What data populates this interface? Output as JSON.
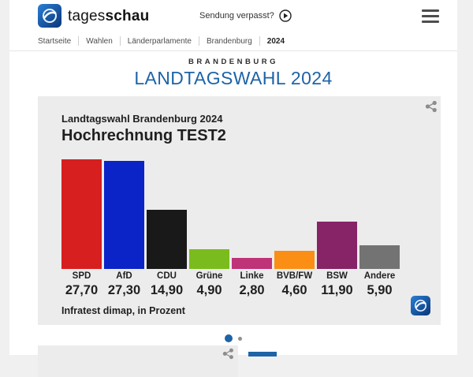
{
  "header": {
    "brand_light": "tages",
    "brand_bold": "schau",
    "watch_label": "Sendung verpasst?"
  },
  "breadcrumb": {
    "items": [
      "Startseite",
      "Wahlen",
      "Länderparlamente",
      "Brandenburg",
      "2024"
    ]
  },
  "page_title": {
    "kicker": "BRANDENBURG",
    "heading": "LANDTAGSWAHL 2024"
  },
  "chart_card": {
    "supertitle": "Landtagswahl Brandenburg 2024",
    "title": "Hochrechnung TEST2",
    "source": "Infratest dimap, in Prozent"
  },
  "chart_data": {
    "type": "bar",
    "title": "Hochrechnung TEST2",
    "subtitle": "Landtagswahl Brandenburg 2024",
    "source_note": "Infratest dimap, in Prozent",
    "unit": "percent",
    "categories": [
      "SPD",
      "AfD",
      "CDU",
      "Grüne",
      "Linke",
      "BVB/FW",
      "BSW",
      "Andere"
    ],
    "values": [
      27.7,
      27.3,
      14.9,
      4.9,
      2.8,
      4.6,
      11.9,
      5.9
    ],
    "value_labels": [
      "27,70",
      "27,30",
      "14,90",
      "4,90",
      "2,80",
      "4,60",
      "11,90",
      "5,90"
    ],
    "bar_colors": [
      "#d71f1f",
      "#0b24c8",
      "#191919",
      "#7abc1d",
      "#bf3378",
      "#fb8e14",
      "#872367",
      "#737373"
    ],
    "ylim": [
      0,
      30
    ],
    "grid": false,
    "legend": "none"
  },
  "carousel": {
    "active_page": 1,
    "pages": 2
  },
  "colors": {
    "accent_blue": "#1d63a8",
    "card_bg": "#ececec",
    "page_bg": "#f0f0f0"
  }
}
